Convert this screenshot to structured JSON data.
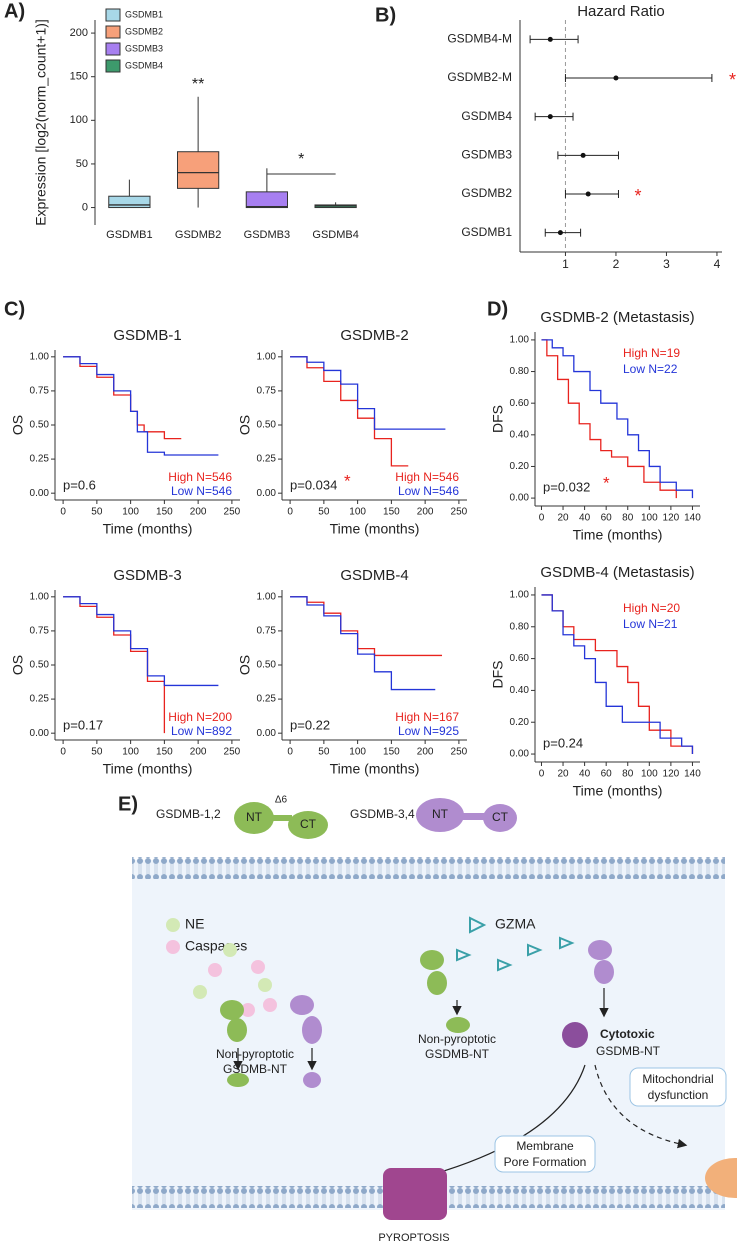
{
  "panel_labels": [
    "A)",
    "B)",
    "C)",
    "D)",
    "E)"
  ],
  "chart_data": [
    {
      "type": "box",
      "ylabel": "Expression [log2(norm_count+1)]",
      "categories": [
        "GSDMB1",
        "GSDMB2",
        "GSDMB3",
        "GSDMB4"
      ],
      "colors": [
        "#a8d8e8",
        "#f7a07a",
        "#a77ff0",
        "#3d9a6c"
      ],
      "boxes": [
        {
          "min": 0,
          "q1": 0,
          "median": 3,
          "q3": 13,
          "max": 32
        },
        {
          "min": 0,
          "q1": 22,
          "median": 40,
          "q3": 64,
          "max": 127
        },
        {
          "min": 0,
          "q1": 0,
          "median": 1,
          "q3": 18,
          "max": 45
        },
        {
          "min": 0,
          "q1": 0,
          "median": 2,
          "q3": 3,
          "max": 6
        }
      ],
      "ylim": [
        -20,
        215
      ],
      "yticks": [
        0,
        50,
        100,
        150,
        200
      ],
      "legend": true,
      "annotations": [
        "**",
        "*"
      ]
    },
    {
      "type": "forest",
      "title": "Hazard Ratio",
      "categories": [
        "GSDMB4-M",
        "GSDMB2-M",
        "GSDMB4",
        "GSDMB3",
        "GSDMB2",
        "GSDMB1"
      ],
      "values": [
        0.7,
        2.0,
        0.7,
        1.35,
        1.45,
        0.9
      ],
      "lower": [
        0.3,
        1.0,
        0.4,
        0.85,
        1.0,
        0.6
      ],
      "upper": [
        1.25,
        3.9,
        1.15,
        2.05,
        2.05,
        1.3
      ],
      "xlim": [
        0.1,
        4.1
      ],
      "xticks": [
        1,
        2,
        3,
        4
      ],
      "reference_line": 1,
      "annotations": [
        "*",
        "*"
      ],
      "annotation_color": "#e8231e"
    },
    {
      "type": "km",
      "title": "GSDMB-1",
      "ylabel": "OS",
      "xlabel": "Time (months)",
      "p_label": "p=0.6",
      "series": [
        {
          "name": "High N=546",
          "color": "#e8231e",
          "x": [
            0,
            25,
            50,
            75,
            100,
            110,
            120,
            150,
            175
          ],
          "values": [
            1,
            0.93,
            0.85,
            0.72,
            0.6,
            0.5,
            0.45,
            0.4,
            0.4
          ]
        },
        {
          "name": "Low N=546",
          "color": "#2435d8",
          "x": [
            0,
            25,
            50,
            75,
            100,
            110,
            125,
            150,
            230
          ],
          "values": [
            1,
            0.95,
            0.87,
            0.75,
            0.6,
            0.45,
            0.3,
            0.28,
            0.28
          ]
        }
      ],
      "xlim": [
        -12,
        262
      ],
      "xticks": [
        0,
        50,
        100,
        150,
        200,
        250
      ],
      "ylim": [
        -0.05,
        1.05
      ],
      "yticks": [
        {
          "value": 0,
          "label": "0.00"
        },
        {
          "value": 0.25,
          "label": "0.25"
        },
        {
          "value": 0.5,
          "label": "0.50"
        },
        {
          "value": 0.75,
          "label": "0.75"
        },
        {
          "value": 1,
          "label": "1.00"
        }
      ]
    },
    {
      "type": "km",
      "title": "GSDMB-2",
      "ylabel": "OS",
      "xlabel": "Time (months)",
      "p_label": "p=0.034",
      "annotations": [
        "*"
      ],
      "series": [
        {
          "name": "High N=546",
          "color": "#e8231e",
          "x": [
            0,
            25,
            50,
            75,
            100,
            125,
            150,
            175
          ],
          "values": [
            1,
            0.92,
            0.82,
            0.68,
            0.55,
            0.4,
            0.2,
            0.2
          ]
        },
        {
          "name": "Low N=546",
          "color": "#2435d8",
          "x": [
            0,
            25,
            50,
            75,
            100,
            125,
            230
          ],
          "values": [
            1,
            0.96,
            0.9,
            0.8,
            0.62,
            0.47,
            0.47
          ]
        }
      ],
      "xlim": [
        -12,
        262
      ],
      "xticks": [
        0,
        50,
        100,
        150,
        200,
        250
      ],
      "ylim": [
        -0.05,
        1.05
      ],
      "yticks": [
        {
          "value": 0,
          "label": "0.00"
        },
        {
          "value": 0.25,
          "label": "0.25"
        },
        {
          "value": 0.5,
          "label": "0.50"
        },
        {
          "value": 0.75,
          "label": "0.75"
        },
        {
          "value": 1,
          "label": "1.00"
        }
      ]
    },
    {
      "type": "km",
      "title": "GSDMB-3",
      "ylabel": "OS",
      "xlabel": "Time (months)",
      "p_label": "p=0.17",
      "series": [
        {
          "name": "High N=200",
          "color": "#e8231e",
          "x": [
            0,
            25,
            50,
            75,
            100,
            125,
            148,
            150
          ],
          "values": [
            1,
            0.93,
            0.85,
            0.72,
            0.6,
            0.38,
            0.38,
            0
          ]
        },
        {
          "name": "Low N=892",
          "color": "#2435d8",
          "x": [
            0,
            25,
            50,
            75,
            100,
            125,
            150,
            230
          ],
          "values": [
            1,
            0.95,
            0.87,
            0.75,
            0.62,
            0.42,
            0.35,
            0.35
          ]
        }
      ],
      "xlim": [
        -12,
        262
      ],
      "xticks": [
        0,
        50,
        100,
        150,
        200,
        250
      ],
      "ylim": [
        -0.05,
        1.05
      ],
      "yticks": [
        {
          "value": 0,
          "label": "0.00"
        },
        {
          "value": 0.25,
          "label": "0.25"
        },
        {
          "value": 0.5,
          "label": "0.50"
        },
        {
          "value": 0.75,
          "label": "0.75"
        },
        {
          "value": 1,
          "label": "1.00"
        }
      ]
    },
    {
      "type": "km",
      "title": "GSDMB-4",
      "ylabel": "OS",
      "xlabel": "Time (months)",
      "p_label": "p=0.22",
      "series": [
        {
          "name": "High N=167",
          "color": "#e8231e",
          "x": [
            0,
            25,
            50,
            75,
            100,
            125,
            150,
            225
          ],
          "values": [
            1,
            0.96,
            0.88,
            0.75,
            0.62,
            0.57,
            0.57,
            0.57
          ]
        },
        {
          "name": "Low N=925",
          "color": "#2435d8",
          "x": [
            0,
            25,
            50,
            75,
            100,
            125,
            150,
            215
          ],
          "values": [
            1,
            0.94,
            0.86,
            0.73,
            0.58,
            0.45,
            0.32,
            0.32
          ]
        }
      ],
      "xlim": [
        -12,
        262
      ],
      "xticks": [
        0,
        50,
        100,
        150,
        200,
        250
      ],
      "ylim": [
        -0.05,
        1.05
      ],
      "yticks": [
        {
          "value": 0,
          "label": "0.00"
        },
        {
          "value": 0.25,
          "label": "0.25"
        },
        {
          "value": 0.5,
          "label": "0.50"
        },
        {
          "value": 0.75,
          "label": "0.75"
        },
        {
          "value": 1,
          "label": "1.00"
        }
      ]
    },
    {
      "type": "km",
      "title": "GSDMB-2 (Metastasis)",
      "ylabel": "DFS",
      "xlabel": "Time (months)",
      "p_label": "p=0.032",
      "annotations": [
        "*"
      ],
      "series": [
        {
          "name": "High N=19",
          "color": "#e8231e",
          "x": [
            0,
            5,
            15,
            25,
            35,
            45,
            55,
            65,
            80,
            95,
            110,
            125
          ],
          "values": [
            1,
            0.9,
            0.75,
            0.6,
            0.47,
            0.37,
            0.3,
            0.26,
            0.2,
            0.1,
            0.05,
            0
          ]
        },
        {
          "name": "Low N=22",
          "color": "#2435d8",
          "x": [
            0,
            10,
            20,
            30,
            45,
            55,
            70,
            80,
            90,
            100,
            110,
            125,
            140
          ],
          "values": [
            1,
            0.95,
            0.9,
            0.8,
            0.68,
            0.6,
            0.5,
            0.4,
            0.3,
            0.2,
            0.1,
            0.05,
            0
          ]
        }
      ],
      "xlim": [
        -6,
        147
      ],
      "xticks": [
        0,
        20,
        40,
        60,
        80,
        100,
        120,
        140
      ],
      "ylim": [
        -0.05,
        1.05
      ],
      "yticks": [
        {
          "value": 0,
          "label": "0.00"
        },
        {
          "value": 0.2,
          "label": "0.20"
        },
        {
          "value": 0.4,
          "label": "0.40"
        },
        {
          "value": 0.6,
          "label": "0.60"
        },
        {
          "value": 0.8,
          "label": "0.80"
        },
        {
          "value": 1,
          "label": "1.00"
        }
      ]
    },
    {
      "type": "km",
      "title": "GSDMB-4 (Metastasis)",
      "ylabel": "DFS",
      "xlabel": "Time (months)",
      "p_label": "p=0.24",
      "series": [
        {
          "name": "High N=20",
          "color": "#e8231e",
          "x": [
            0,
            10,
            20,
            30,
            50,
            60,
            70,
            80,
            90,
            100,
            120,
            140
          ],
          "values": [
            1,
            0.9,
            0.8,
            0.72,
            0.65,
            0.65,
            0.55,
            0.45,
            0.3,
            0.15,
            0.05,
            0
          ]
        },
        {
          "name": "Low N=21",
          "color": "#2435d8",
          "x": [
            0,
            10,
            20,
            30,
            40,
            50,
            60,
            75,
            90,
            110,
            130,
            140
          ],
          "values": [
            1,
            0.9,
            0.75,
            0.68,
            0.6,
            0.45,
            0.3,
            0.2,
            0.2,
            0.1,
            0.05,
            0
          ]
        }
      ],
      "xlim": [
        -6,
        147
      ],
      "xticks": [
        0,
        20,
        40,
        60,
        80,
        100,
        120,
        140
      ],
      "ylim": [
        -0.05,
        1.05
      ],
      "yticks": [
        {
          "value": 0,
          "label": "0.00"
        },
        {
          "value": 0.2,
          "label": "0.20"
        },
        {
          "value": 0.4,
          "label": "0.40"
        },
        {
          "value": 0.6,
          "label": "0.60"
        },
        {
          "value": 0.8,
          "label": "0.80"
        },
        {
          "value": 1,
          "label": "1.00"
        }
      ]
    }
  ],
  "diagram": {
    "gsdmb12": "GSDMB-1,2",
    "nt1": "NT",
    "delta": "Δ6",
    "ct1": "CT",
    "gsdmb34": "GSDMB-3,4",
    "nt2": "NT",
    "ct2": "CT",
    "ne": "NE",
    "caspases": "Caspases",
    "gzma": "GZMA",
    "nonpyro1": [
      "Non-pyroptotic",
      "GSDMB-NT"
    ],
    "nonpyro2": [
      "Non-pyroptotic",
      "GSDMB-NT"
    ],
    "cytotoxic": [
      "Cytotoxic",
      "GSDMB-NT"
    ],
    "mito": [
      "Mitochondrial",
      "dysfunction"
    ],
    "pore": [
      "Membrane",
      "Pore Formation"
    ],
    "pyroptosis": "PYROPTOSIS"
  }
}
